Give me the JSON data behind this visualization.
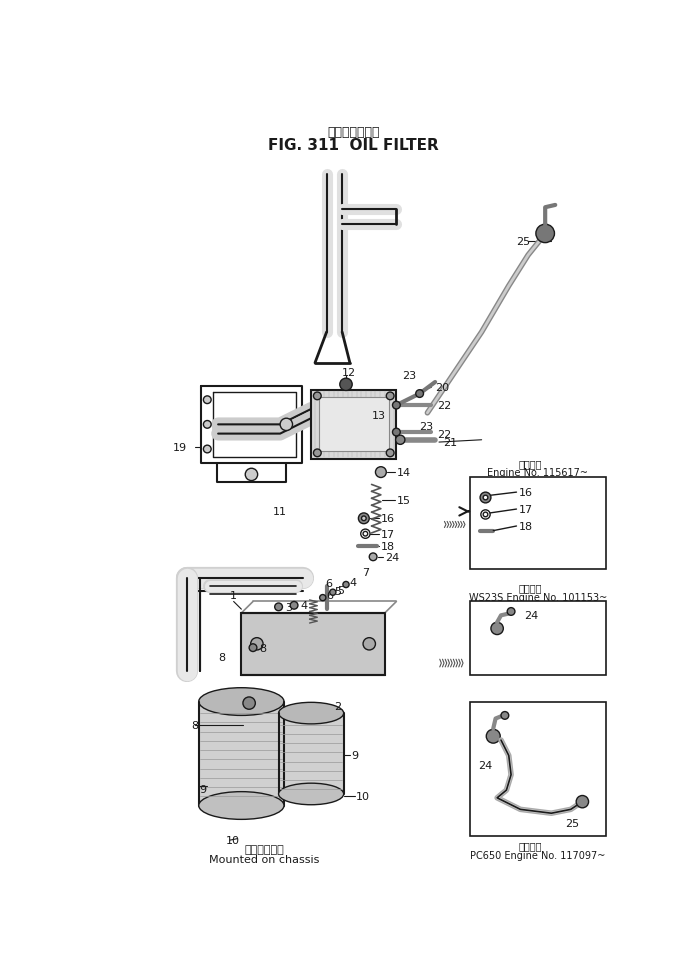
{
  "title_japanese": "オイルフィルタ",
  "title_english": "FIG. 311  OIL FILTER",
  "footer_japanese": "車体側に取付",
  "footer_english": "Mounted on chassis",
  "bg_color": "#ffffff",
  "line_color": "#1a1a1a",
  "inset1_label1": "適用号機",
  "inset1_label2": "Engine No. 115617~",
  "inset2_label": "適用号機",
  "inset2_sub": "WS23S Engine No. 101153~",
  "inset3_label": "適用号機",
  "inset3_sub": "PC650 Engine No. 117097~"
}
